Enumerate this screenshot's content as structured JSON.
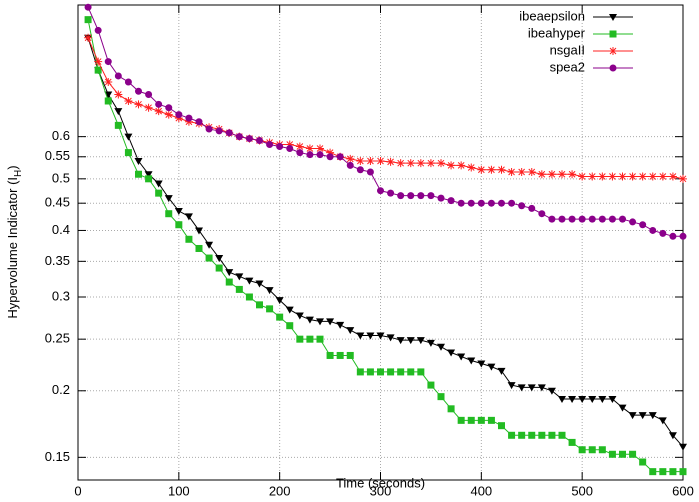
{
  "chart_data": {
    "type": "line",
    "xlabel": "Time (seconds)",
    "ylabel": "Hypervolume Indicator (I",
    "ylabel_sub": "H",
    "ylabel_end": ")",
    "yscale": "log",
    "grid": true,
    "legend": "top-right",
    "xlim": [
      0,
      600
    ],
    "xticks": [
      0,
      100,
      200,
      300,
      400,
      500,
      600
    ],
    "ylim": [
      0.136,
      1.06
    ],
    "yticks": [
      0.15,
      0.2,
      0.25,
      0.3,
      0.35,
      0.4,
      0.45,
      0.5,
      0.55,
      0.6
    ],
    "x": [
      10,
      20,
      30,
      40,
      50,
      60,
      70,
      80,
      90,
      100,
      110,
      120,
      130,
      140,
      150,
      160,
      170,
      180,
      190,
      200,
      210,
      220,
      230,
      240,
      250,
      260,
      270,
      280,
      290,
      300,
      310,
      320,
      330,
      340,
      350,
      360,
      370,
      380,
      390,
      400,
      410,
      420,
      430,
      440,
      450,
      460,
      470,
      480,
      490,
      500,
      510,
      520,
      530,
      540,
      550,
      560,
      570,
      580,
      590,
      600
    ],
    "series": [
      {
        "name": "ibeaepsilon",
        "color": "#000000",
        "marker": "triangle-down",
        "values": [
          0.92,
          0.8,
          0.72,
          0.67,
          0.6,
          0.54,
          0.51,
          0.49,
          0.46,
          0.435,
          0.425,
          0.4,
          0.376,
          0.355,
          0.334,
          0.328,
          0.322,
          0.318,
          0.309,
          0.296,
          0.284,
          0.277,
          0.272,
          0.27,
          0.27,
          0.266,
          0.26,
          0.254,
          0.254,
          0.254,
          0.252,
          0.249,
          0.249,
          0.249,
          0.246,
          0.242,
          0.236,
          0.232,
          0.228,
          0.225,
          0.222,
          0.218,
          0.205,
          0.203,
          0.203,
          0.203,
          0.2,
          0.193,
          0.193,
          0.193,
          0.193,
          0.193,
          0.193,
          0.186,
          0.18,
          0.18,
          0.18,
          0.176,
          0.165,
          0.157
        ]
      },
      {
        "name": "ibeahyper",
        "color": "#22bb22",
        "marker": "square",
        "values": [
          0.995,
          0.8,
          0.7,
          0.63,
          0.56,
          0.51,
          0.5,
          0.47,
          0.43,
          0.41,
          0.385,
          0.37,
          0.355,
          0.34,
          0.32,
          0.31,
          0.3,
          0.29,
          0.285,
          0.275,
          0.265,
          0.25,
          0.25,
          0.25,
          0.233,
          0.233,
          0.233,
          0.217,
          0.217,
          0.217,
          0.217,
          0.217,
          0.217,
          0.217,
          0.205,
          0.195,
          0.185,
          0.176,
          0.176,
          0.176,
          0.176,
          0.172,
          0.165,
          0.165,
          0.165,
          0.165,
          0.165,
          0.165,
          0.16,
          0.155,
          0.155,
          0.155,
          0.152,
          0.152,
          0.152,
          0.147,
          0.141,
          0.141,
          0.141,
          0.141
        ]
      },
      {
        "name": "nsgaII",
        "color": "#ff2020",
        "marker": "asterisk",
        "values": [
          0.92,
          0.83,
          0.76,
          0.72,
          0.7,
          0.69,
          0.68,
          0.67,
          0.66,
          0.65,
          0.64,
          0.635,
          0.625,
          0.62,
          0.61,
          0.6,
          0.595,
          0.59,
          0.585,
          0.58,
          0.58,
          0.575,
          0.57,
          0.57,
          0.56,
          0.55,
          0.545,
          0.54,
          0.54,
          0.54,
          0.538,
          0.535,
          0.535,
          0.535,
          0.535,
          0.535,
          0.53,
          0.53,
          0.525,
          0.52,
          0.52,
          0.52,
          0.515,
          0.515,
          0.515,
          0.51,
          0.51,
          0.51,
          0.51,
          0.505,
          0.505,
          0.505,
          0.505,
          0.505,
          0.505,
          0.505,
          0.505,
          0.505,
          0.505,
          0.5
        ]
      },
      {
        "name": "spea2",
        "color": "#8b008b",
        "marker": "circle",
        "values": [
          1.05,
          0.95,
          0.83,
          0.78,
          0.76,
          0.73,
          0.72,
          0.69,
          0.68,
          0.66,
          0.65,
          0.64,
          0.62,
          0.615,
          0.61,
          0.6,
          0.595,
          0.59,
          0.58,
          0.575,
          0.57,
          0.56,
          0.555,
          0.555,
          0.55,
          0.55,
          0.53,
          0.52,
          0.515,
          0.475,
          0.47,
          0.465,
          0.465,
          0.465,
          0.465,
          0.46,
          0.455,
          0.45,
          0.45,
          0.45,
          0.45,
          0.45,
          0.45,
          0.445,
          0.44,
          0.43,
          0.42,
          0.42,
          0.42,
          0.42,
          0.42,
          0.42,
          0.42,
          0.42,
          0.415,
          0.41,
          0.4,
          0.395,
          0.39,
          0.39
        ]
      }
    ]
  }
}
